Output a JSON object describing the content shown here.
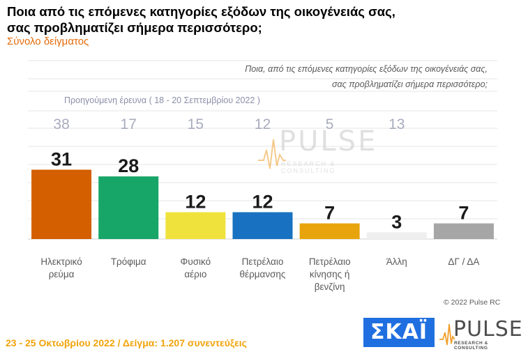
{
  "header": {
    "title_line1": "Ποια από τις επόμενες κατηγορίες εξόδων της οικογένειάς σας,",
    "title_line2": "σας προβληματίζει σήμερα περισσότερο;",
    "subtitle": "Σύνολο δείγματος"
  },
  "question": {
    "line1": "Ποια, από τις επόμενες κατηγορίες εξόδων της οικογένειάς σας,",
    "line2": "σας προβληματίζει σήμερα περισσότερο;"
  },
  "previous_survey_label": "Προηγούμενη έρευνα  ( 18 - 20 Σεπτεμβρίου  2022 )",
  "chart_data": {
    "type": "bar",
    "categories": [
      [
        "Ηλεκτρικό",
        "ρεύμα"
      ],
      [
        "Τρόφιμα"
      ],
      [
        "Φυσικό",
        "αέριο"
      ],
      [
        "Πετρέλαιο",
        "θέρμανσης"
      ],
      [
        "Πετρέλαιο",
        "κίνησης ή",
        "βενζίνη"
      ],
      [
        "Άλλη"
      ],
      [
        "ΔΓ / ΔΑ"
      ]
    ],
    "values": [
      31,
      28,
      12,
      12,
      7,
      3,
      7
    ],
    "previous_values": [
      38,
      17,
      15,
      12,
      5,
      13
    ],
    "colors": [
      "#d35f00",
      "#17a668",
      "#f0e23c",
      "#1872c1",
      "#e8a40c",
      "#eeeeee",
      "#a6a6a6"
    ],
    "ylim": [
      0,
      38
    ],
    "grid": true
  },
  "watermark": {
    "word": "PULSE",
    "sub": "RESEARCH & CONSULTING"
  },
  "copyright": "© 2022 Pulse RC",
  "footer": "23 - 25  Οκτωβρίου  2022  /  Δείγμα:  1.207 συνεντεύξεις",
  "logos": {
    "skai": "ΣΚΑΪ",
    "pulse_word": "PULSE",
    "pulse_sub": "RESEARCH & CONSULTING"
  }
}
